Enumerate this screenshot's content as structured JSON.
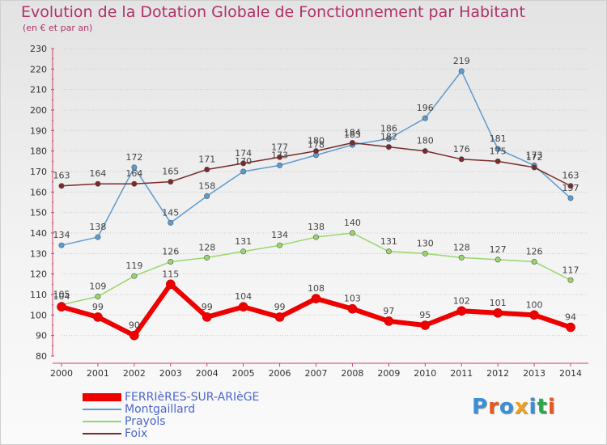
{
  "header": {
    "title": "Evolution de la Dotation Globale de Fonctionnement par Habitant",
    "subtitle": "(en € et par an)"
  },
  "logo": {
    "text": "Proxiti",
    "colors": [
      "#3a8fd8",
      "#e8581c",
      "#3a8fd8",
      "#f0a020",
      "#3a8fd8",
      "#2aa84a",
      "#e8581c"
    ]
  },
  "chart_data": {
    "type": "line",
    "title": "Evolution de la Dotation Globale de Fonctionnement par Habitant",
    "subtitle": "(en € et par an)",
    "x": [
      2000,
      2001,
      2002,
      2003,
      2004,
      2005,
      2006,
      2007,
      2008,
      2009,
      2010,
      2011,
      2012,
      2013,
      2014
    ],
    "ylim": [
      80,
      230
    ],
    "yticks": [
      80,
      90,
      100,
      110,
      120,
      130,
      140,
      150,
      160,
      170,
      180,
      190,
      200,
      210,
      220,
      230
    ],
    "grid": "horizontal dotted",
    "legend_position": "bottom-left",
    "series": [
      {
        "name": "FERRIèRES-SUR-ARIèGE",
        "color": "#ee0000",
        "width": 6,
        "values": [
          104,
          99,
          90,
          115,
          99,
          104,
          99,
          108,
          103,
          97,
          95,
          102,
          101,
          100,
          94
        ],
        "labels": [
          "104",
          "99",
          "90",
          "115",
          "99",
          "104",
          "99",
          "108",
          "103",
          "97",
          "95",
          "102",
          "101",
          "100",
          "94"
        ]
      },
      {
        "name": "Montgaillard",
        "color": "#5d9bd0",
        "width": 1.5,
        "values": [
          134,
          138,
          172,
          145,
          158,
          170,
          173,
          178,
          183,
          186,
          196,
          219,
          181,
          173,
          157
        ],
        "labels": [
          "134",
          "138",
          "172",
          "145",
          "158",
          "170",
          "173",
          "178",
          "183",
          "186",
          "196",
          "219",
          "181",
          "173",
          "157"
        ]
      },
      {
        "name": "Prayols",
        "color": "#99d66a",
        "width": 1.5,
        "values": [
          105,
          109,
          119,
          126,
          128,
          131,
          134,
          138,
          140,
          131,
          130,
          128,
          127,
          126,
          117
        ],
        "labels": [
          "105",
          "109",
          "119",
          "126",
          "128",
          "131",
          "134",
          "138",
          "140",
          "131",
          "130",
          "128",
          "127",
          "126",
          "117"
        ]
      },
      {
        "name": "Foix",
        "color": "#7a2a2a",
        "width": 1.5,
        "values": [
          163,
          164,
          164,
          165,
          171,
          174,
          177,
          180,
          184,
          182,
          180,
          176,
          175,
          172,
          163
        ],
        "labels": [
          "163",
          "164",
          "164",
          "165",
          "171",
          "174",
          "177",
          "180",
          "184",
          "182",
          "180",
          "176",
          "175",
          "172",
          "163"
        ]
      }
    ]
  }
}
